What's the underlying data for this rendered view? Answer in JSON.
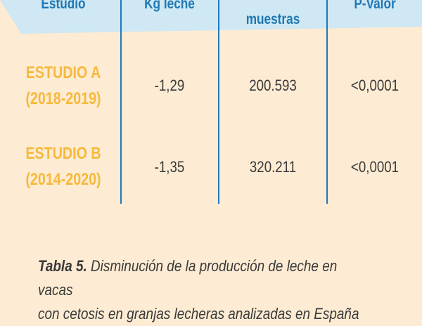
{
  "table": {
    "headers": {
      "col1": "Estudio",
      "col2": "Kg leche",
      "col3": "muestras",
      "col4": "P-Valor"
    },
    "rows": [
      {
        "study": "ESTUDIO A",
        "period": "(2018-2019)",
        "kg": "-1,29",
        "samples": "200.593",
        "p": "<0,0001"
      },
      {
        "study": "ESTUDIO B",
        "period": "(2014-2020)",
        "kg": "-1,35",
        "samples": "320.211",
        "p": "<0,0001"
      }
    ]
  },
  "caption": {
    "label": "Tabla 5.",
    "line1": " Disminución de la producción de leche en vacas",
    "line2": "con cetosis en granjas lecheras analizadas en España"
  },
  "colors": {
    "background": "#fdebd3",
    "header_band": "#cfe8f3",
    "header_text": "#1f78b4",
    "lines": "#2277bb",
    "study_text": "#f6b93b",
    "cell_text": "#3a3a3a"
  }
}
